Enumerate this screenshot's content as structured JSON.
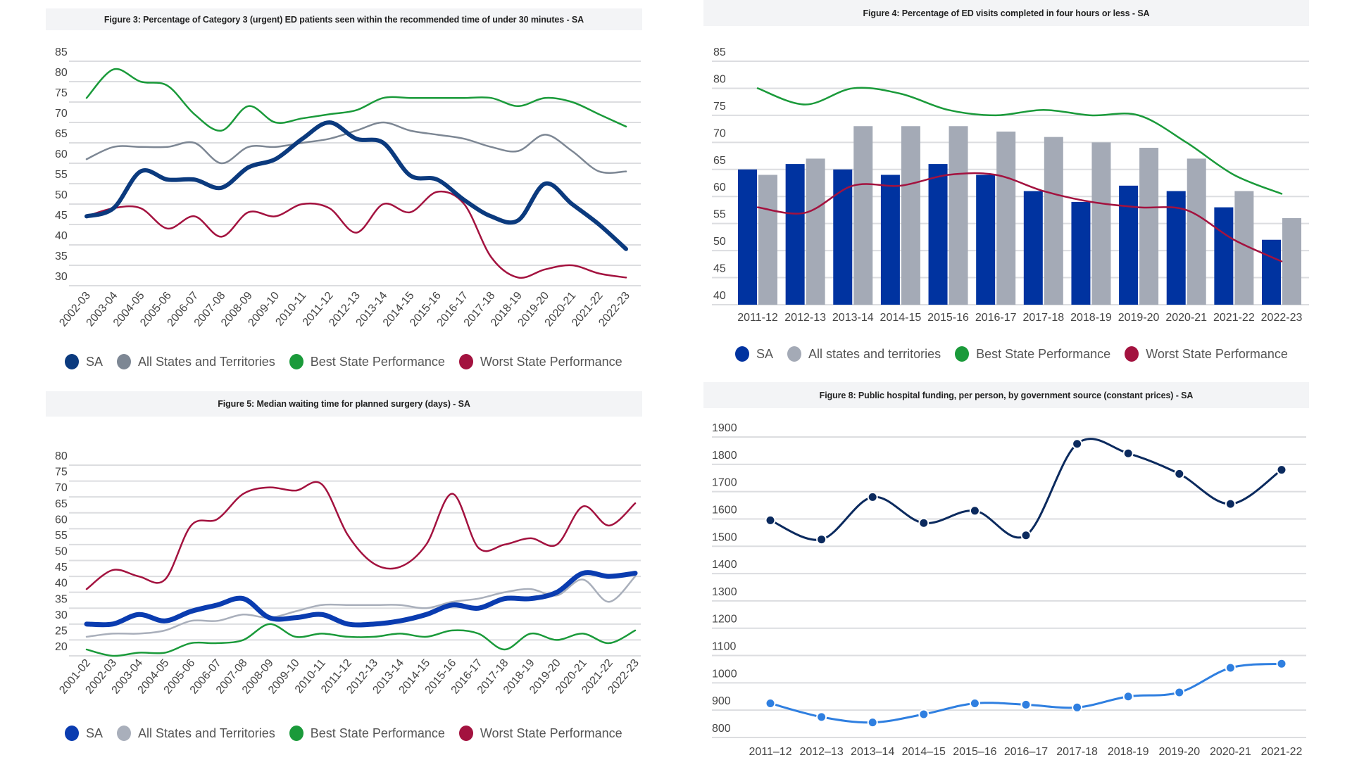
{
  "chart_data": [
    {
      "type": "line",
      "title": "Figure 3: Percentage of Category 3 (urgent) ED patients seen within the recommended time of under 30 minutes - SA",
      "categories": [
        "2002-03",
        "2003-04",
        "2004-05",
        "2005-06",
        "2006-07",
        "2007-08",
        "2008-09",
        "2009-10",
        "2010-11",
        "2011-12",
        "2012-13",
        "2013-14",
        "2014-15",
        "2015-16",
        "2016-17",
        "2017-18",
        "2018-19",
        "2019-20",
        "2020-21",
        "2021-22",
        "2022-23"
      ],
      "ylim": [
        30,
        85
      ],
      "yticks": [
        "30",
        "35",
        "40",
        "45",
        "50",
        "55",
        "60",
        "65",
        "70",
        "75",
        "80",
        "85"
      ],
      "grid": true,
      "legend_position": "bottom",
      "series": [
        {
          "name": "SA",
          "color": "#0b3a7e",
          "values": [
            47,
            49,
            58,
            56,
            56,
            54,
            59,
            61,
            66,
            70,
            66,
            65,
            57,
            56,
            51,
            47,
            46,
            55,
            50,
            45,
            39
          ]
        },
        {
          "name": "All States and Territories",
          "color": "#7d8794",
          "values": [
            61,
            64,
            64,
            64,
            65,
            60,
            64,
            64,
            65,
            66,
            68,
            70,
            68,
            67,
            66,
            64,
            63,
            67,
            63,
            58,
            58
          ]
        },
        {
          "name": "Best State Performance",
          "color": "#1a9a3a",
          "values": [
            76,
            83,
            80,
            79,
            72,
            68,
            74,
            70,
            71,
            72,
            73,
            76,
            76,
            76,
            76,
            76,
            74,
            76,
            75,
            72,
            69
          ]
        },
        {
          "name": "Worst State Performance",
          "color": "#a3123f",
          "values": [
            47,
            49,
            49,
            44,
            47,
            42,
            48,
            47,
            50,
            49,
            43,
            50,
            48,
            53,
            50,
            37,
            32,
            34,
            35,
            33,
            32
          ]
        }
      ]
    },
    {
      "type": "bar",
      "title": "Figure 4: Percentage of ED visits completed in four hours or less - SA",
      "categories": [
        "2011-12",
        "2012-13",
        "2013-14",
        "2014-15",
        "2015-16",
        "2016-17",
        "2017-18",
        "2018-19",
        "2019-20",
        "2020-21",
        "2021-22",
        "2022-23"
      ],
      "ylim": [
        40,
        85
      ],
      "yticks": [
        "40",
        "45",
        "50",
        "55",
        "60",
        "65",
        "70",
        "75",
        "80",
        "85"
      ],
      "grid": true,
      "legend_position": "bottom",
      "series": [
        {
          "name": "SA",
          "kind": "bar",
          "color": "#0033a0",
          "values": [
            65,
            66,
            65,
            64,
            66,
            64,
            61,
            59,
            62,
            61,
            58,
            52
          ]
        },
        {
          "name": "All states and territories",
          "kind": "bar",
          "color": "#a4aab6",
          "values": [
            64,
            67,
            73,
            73,
            73,
            72,
            71,
            70,
            69,
            67,
            61,
            56
          ]
        },
        {
          "name": "Best State Performance",
          "kind": "line",
          "color": "#1a9a3a",
          "values": [
            80,
            77,
            80,
            79,
            76,
            75,
            76,
            75,
            75,
            70,
            64,
            60.5
          ]
        },
        {
          "name": "Worst State Performance",
          "kind": "line",
          "color": "#a3123f",
          "values": [
            58,
            57,
            62,
            62,
            64,
            64,
            61,
            59,
            58,
            57.5,
            52,
            48
          ]
        }
      ]
    },
    {
      "type": "line",
      "title": "Figure 5: Median waiting time for planned surgery (days) - SA",
      "categories": [
        "2001-02",
        "2002-03",
        "2003-04",
        "2004-05",
        "2005-06",
        "2006-07",
        "2007-08",
        "2008-09",
        "2009-10",
        "2010-11",
        "2011-12",
        "2012-13",
        "2013-14",
        "2014-15",
        "2015-16",
        "2016-17",
        "2017-18",
        "2018-19",
        "2019-20",
        "2020-21",
        "2021-22",
        "2022-23"
      ],
      "ylim": [
        20,
        80
      ],
      "yticks": [
        "20",
        "25",
        "30",
        "35",
        "40",
        "45",
        "50",
        "55",
        "60",
        "65",
        "70",
        "75",
        "80"
      ],
      "grid": true,
      "legend_position": "bottom",
      "series": [
        {
          "name": "SA",
          "color": "#0a3cb0",
          "values": [
            30,
            30,
            33,
            31,
            34,
            36,
            38,
            32,
            32,
            33,
            30,
            30,
            31,
            33,
            36,
            35,
            38,
            38,
            40,
            46,
            45,
            46
          ]
        },
        {
          "name": "All States and Territories",
          "color": "#a9afbb",
          "values": [
            26,
            27,
            27,
            28,
            31,
            31,
            33,
            32,
            34,
            36,
            36,
            36,
            36,
            35,
            37,
            38,
            40,
            41,
            39,
            44,
            37,
            45
          ]
        },
        {
          "name": "Best State Performance",
          "color": "#1a9a3a",
          "values": [
            22,
            20,
            21,
            21,
            24,
            24,
            25,
            30,
            26,
            27,
            26,
            26,
            27,
            26,
            28,
            27,
            22,
            27,
            25,
            27,
            24,
            28
          ]
        },
        {
          "name": "Worst State Performance",
          "color": "#a3123f",
          "values": [
            41,
            47,
            45,
            44,
            61,
            63,
            71,
            73,
            72,
            74,
            58,
            49,
            48,
            55,
            71,
            54,
            55,
            57,
            55,
            67,
            61,
            68
          ]
        }
      ]
    },
    {
      "type": "line",
      "title": "Figure 8: Public hospital funding, per person, by government source (constant prices) - SA",
      "categories": [
        "2011–12",
        "2012–13",
        "2013–14",
        "2014–15",
        "2015–16",
        "2016–17",
        "2017-18",
        "2018-19",
        "2019-20",
        "2020-21",
        "2021-22"
      ],
      "ylim": [
        800,
        1900
      ],
      "yticks": [
        "800",
        "900",
        "1000",
        "1100",
        "1200",
        "1300",
        "1400",
        "1500",
        "1600",
        "1700",
        "1800",
        "1900"
      ],
      "grid": true,
      "markers": true,
      "series": [
        {
          "color": "#0b2a5e",
          "values": [
            1595,
            1525,
            1680,
            1585,
            1630,
            1540,
            1875,
            1840,
            1765,
            1655,
            1780
          ]
        },
        {
          "color": "#2f7fe0",
          "values": [
            925,
            875,
            855,
            885,
            925,
            920,
            910,
            950,
            965,
            1055,
            1070
          ]
        }
      ]
    }
  ]
}
